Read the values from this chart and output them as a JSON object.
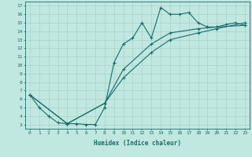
{
  "xlabel": "Humidex (Indice chaleur)",
  "bg_color": "#c0e8e0",
  "line_color": "#1a6b6b",
  "grid_color": "#a0ccc4",
  "xlim": [
    -0.5,
    23.5
  ],
  "ylim": [
    2.5,
    17.5
  ],
  "xticks": [
    0,
    1,
    2,
    3,
    4,
    5,
    6,
    7,
    8,
    9,
    10,
    11,
    12,
    13,
    14,
    15,
    16,
    17,
    18,
    19,
    20,
    21,
    22,
    23
  ],
  "yticks": [
    3,
    4,
    5,
    6,
    7,
    8,
    9,
    10,
    11,
    12,
    13,
    14,
    15,
    16,
    17
  ],
  "curve1_x": [
    0,
    1,
    2,
    3,
    4,
    5,
    6,
    7,
    8,
    9,
    10,
    11,
    12,
    13,
    14,
    15,
    16,
    17,
    18,
    19,
    20,
    21,
    22,
    23
  ],
  "curve1_y": [
    6.5,
    5.0,
    4.0,
    3.2,
    3.1,
    3.1,
    3.0,
    3.0,
    5.0,
    10.3,
    12.5,
    13.2,
    15.0,
    13.2,
    16.8,
    16.0,
    16.0,
    16.2,
    15.0,
    14.5,
    14.5,
    14.8,
    15.0,
    14.7
  ],
  "curve2_x": [
    0,
    4,
    8,
    10,
    13,
    15,
    18,
    20,
    23
  ],
  "curve2_y": [
    6.5,
    3.1,
    5.5,
    8.5,
    11.5,
    13.0,
    13.8,
    14.3,
    15.0
  ],
  "curve3_x": [
    0,
    4,
    8,
    10,
    13,
    15,
    18,
    20,
    23
  ],
  "curve3_y": [
    6.5,
    3.1,
    5.5,
    9.5,
    12.5,
    13.8,
    14.3,
    14.5,
    14.7
  ]
}
